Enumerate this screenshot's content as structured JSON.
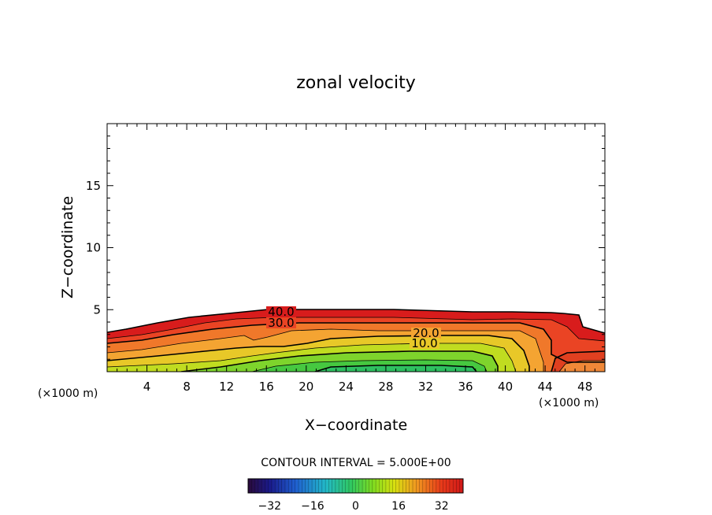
{
  "chart_data": {
    "type": "contour",
    "title": "zonal velocity",
    "xlabel": "X−coordinate",
    "ylabel": "Z−coordinate",
    "x_unit_left": "(×1000 m)",
    "x_unit_right": "(×1000 m)",
    "xlim": [
      0,
      50
    ],
    "ylim": [
      0,
      20
    ],
    "x_ticks": [
      "4",
      "8",
      "12",
      "16",
      "20",
      "24",
      "28",
      "32",
      "36",
      "40",
      "44",
      "48"
    ],
    "y_ticks": [
      "5",
      "10",
      "15"
    ],
    "contour_labels": [
      "40.0",
      "30.0",
      "20.0",
      "10.0"
    ],
    "contour_interval_text": "CONTOUR INTERVAL = 5.000E+00",
    "colorbar": {
      "min": -40,
      "max": 40,
      "ticks": [
        "−32",
        "−16",
        "0",
        "16",
        "32"
      ],
      "colors": [
        "#2a0a3a",
        "#1a1a8a",
        "#1f5fd0",
        "#22b8c8",
        "#30c860",
        "#7fdc20",
        "#d8e010",
        "#f09a20",
        "#e83a1a",
        "#d01818"
      ]
    },
    "fields": {
      "top_height": [
        3.2,
        3.6,
        4.1,
        4.5,
        4.8,
        4.95,
        4.95,
        4.9,
        4.85,
        4.8,
        4.7,
        3.0,
        3.0
      ],
      "top_x": [
        0,
        4,
        8,
        12,
        16,
        20,
        28,
        36,
        40,
        44,
        46,
        47,
        50
      ]
    }
  }
}
